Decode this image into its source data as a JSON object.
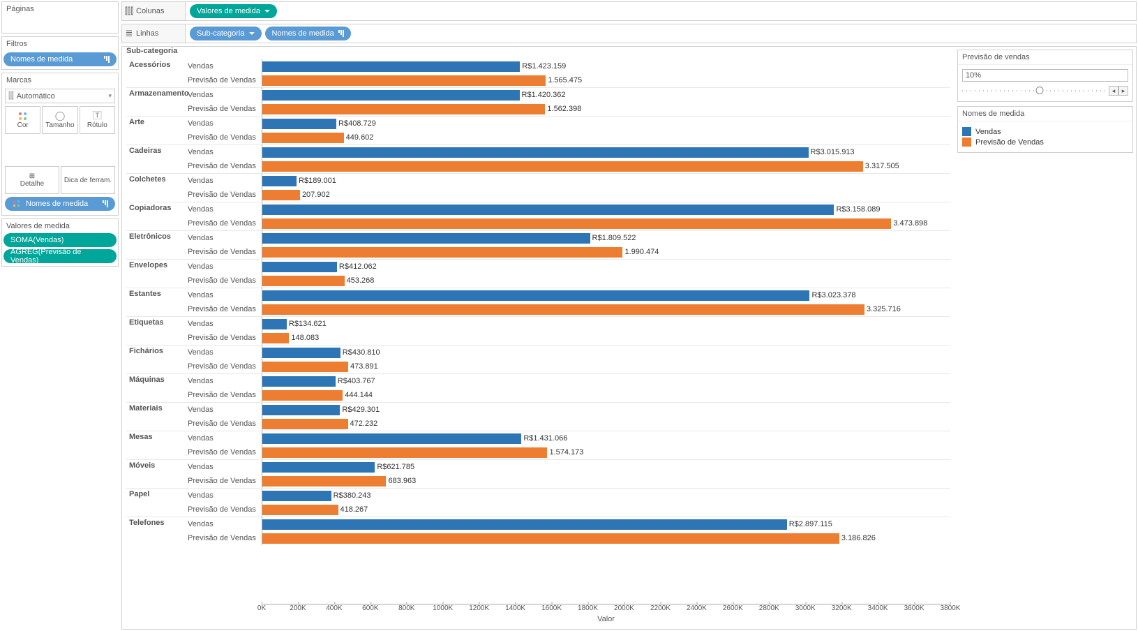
{
  "left": {
    "paginas": "Páginas",
    "filtros": "Filtros",
    "marcas": "Marcas",
    "valores_medida": "Valores de medida",
    "filter_pill": "Nomes de medida",
    "marks_type": "Automático",
    "marks_cells": {
      "cor": "Cor",
      "tamanho": "Tamanho",
      "rotulo": "Rótulo",
      "detalhe": "Detalhe",
      "dica": "Dica de ferram."
    },
    "marks_pill": "Nomes de medida",
    "valores_list": [
      "SOMA(Vendas)",
      "AGREG(Previsão de Vendas)"
    ]
  },
  "shelves": {
    "colunas_label": "Colunas",
    "linhas_label": "Linhas",
    "colunas_pills": [
      "Valores de medida"
    ],
    "linhas_pills": [
      "Sub-categoria",
      "Nomes de medida"
    ]
  },
  "right": {
    "param_title": "Previsão de vendas",
    "param_value": "10%",
    "param_thumb_pct": 55,
    "legend_title": "Nomes de medida",
    "legend_items": [
      {
        "label": "Vendas",
        "color": "#2e75b6"
      },
      {
        "label": "Previsão de Vendas",
        "color": "#ed7d31"
      }
    ]
  },
  "chart": {
    "header": "Sub-categoria",
    "x_axis_title": "Valor",
    "x_max": 3800000,
    "x_ticks": [
      "0K",
      "200K",
      "400K",
      "600K",
      "800K",
      "1000K",
      "1200K",
      "1400K",
      "1600K",
      "1800K",
      "2000K",
      "2200K",
      "2400K",
      "2600K",
      "2800K",
      "3000K",
      "3200K",
      "3400K",
      "3600K",
      "3800K"
    ],
    "colors": {
      "vendas": "#2e75b6",
      "previsao": "#ed7d31"
    },
    "measure_labels": {
      "vendas": "Vendas",
      "previsao": "Previsão de Vendas"
    },
    "currency_prefix": "R$",
    "rows": [
      {
        "cat": "Acessórios",
        "v": 1423159,
        "p": 1565475,
        "vl": "R$1.423.159",
        "pl": "1.565.475"
      },
      {
        "cat": "Armazenamento",
        "v": 1420362,
        "p": 1562398,
        "vl": "R$1.420.362",
        "pl": "1.562.398"
      },
      {
        "cat": "Arte",
        "v": 408729,
        "p": 449602,
        "vl": "R$408.729",
        "pl": "449.602"
      },
      {
        "cat": "Cadeiras",
        "v": 3015913,
        "p": 3317505,
        "vl": "R$3.015.913",
        "pl": "3.317.505"
      },
      {
        "cat": "Colchetes",
        "v": 189001,
        "p": 207902,
        "vl": "R$189.001",
        "pl": "207.902"
      },
      {
        "cat": "Copiadoras",
        "v": 3158089,
        "p": 3473898,
        "vl": "R$3.158.089",
        "pl": "3.473.898"
      },
      {
        "cat": "Eletrônicos",
        "v": 1809522,
        "p": 1990474,
        "vl": "R$1.809.522",
        "pl": "1.990.474"
      },
      {
        "cat": "Envelopes",
        "v": 412062,
        "p": 453268,
        "vl": "R$412.062",
        "pl": "453.268"
      },
      {
        "cat": "Estantes",
        "v": 3023378,
        "p": 3325716,
        "vl": "R$3.023.378",
        "pl": "3.325.716"
      },
      {
        "cat": "Etiquetas",
        "v": 134621,
        "p": 148083,
        "vl": "R$134.621",
        "pl": "148.083"
      },
      {
        "cat": "Fichários",
        "v": 430810,
        "p": 473891,
        "vl": "R$430.810",
        "pl": "473.891"
      },
      {
        "cat": "Máquinas",
        "v": 403767,
        "p": 444144,
        "vl": "R$403.767",
        "pl": "444.144"
      },
      {
        "cat": "Materiais",
        "v": 429301,
        "p": 472232,
        "vl": "R$429.301",
        "pl": "472.232"
      },
      {
        "cat": "Mesas",
        "v": 1431066,
        "p": 1574173,
        "vl": "R$1.431.066",
        "pl": "1.574.173"
      },
      {
        "cat": "Móveis",
        "v": 621785,
        "p": 683963,
        "vl": "R$621.785",
        "pl": "683.963"
      },
      {
        "cat": "Papel",
        "v": 380243,
        "p": 418267,
        "vl": "R$380.243",
        "pl": "418.267"
      },
      {
        "cat": "Telefones",
        "v": 2897115,
        "p": 3186826,
        "vl": "R$2.897.115",
        "pl": "3.186.826"
      }
    ]
  }
}
